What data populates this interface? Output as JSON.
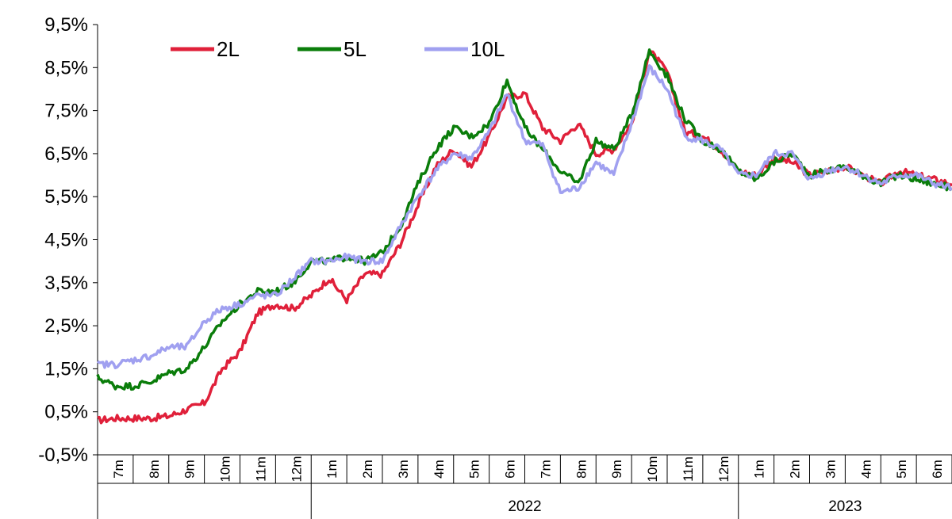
{
  "chart_data": {
    "type": "line",
    "title": "",
    "xlabel": "",
    "ylabel": "",
    "ylim": [
      -0.5,
      9.5
    ],
    "yticks": [
      "9,5%",
      "8,5%",
      "7,5%",
      "6,5%",
      "5,5%",
      "4,5%",
      "3,5%",
      "2,5%",
      "1,5%",
      "0,5%",
      "-0,5%"
    ],
    "months": [
      "7m",
      "8m",
      "9m",
      "10m",
      "11m",
      "12m",
      "1m",
      "2m",
      "3m",
      "4m",
      "5m",
      "6m",
      "7m",
      "8m",
      "9m",
      "10m",
      "11m",
      "12m",
      "1m",
      "2m",
      "3m",
      "4m",
      "5m",
      "6m"
    ],
    "years": [
      {
        "label": "2022",
        "from": 6,
        "to": 17
      },
      {
        "label": "2023",
        "from": 18,
        "to": 23
      }
    ],
    "legend_position": "top-left",
    "x": [
      0,
      0.5,
      1,
      1.5,
      2,
      2.5,
      3,
      3.5,
      4,
      4.5,
      5,
      5.5,
      6,
      6.5,
      7,
      7.5,
      8,
      8.5,
      9,
      9.5,
      10,
      10.5,
      11,
      11.5,
      12,
      12.5,
      13,
      13.5,
      14,
      14.5,
      15,
      15.5,
      16,
      16.5,
      17,
      17.5,
      18,
      18.5,
      19,
      19.5,
      20,
      20.5,
      21,
      21.5,
      22,
      22.5,
      23,
      23.5,
      24
    ],
    "series": [
      {
        "name": "2L",
        "color": "#e0203a",
        "values": [
          0.3,
          0.35,
          0.35,
          0.35,
          0.4,
          0.55,
          0.7,
          1.5,
          1.9,
          2.8,
          3.0,
          2.9,
          3.2,
          3.6,
          3.1,
          3.7,
          3.7,
          4.4,
          5.3,
          6.2,
          6.6,
          6.2,
          6.9,
          7.8,
          7.9,
          7.1,
          6.8,
          7.2,
          6.5,
          6.6,
          7.2,
          8.9,
          8.4,
          7.0,
          6.9,
          6.6,
          6.1,
          6.0,
          6.4,
          6.3,
          6.0,
          6.1,
          6.2,
          6.0,
          5.8,
          6.1,
          6.0,
          5.9,
          5.8
        ]
      },
      {
        "name": "5L",
        "color": "#0a7d0a",
        "values": [
          1.3,
          1.1,
          1.1,
          1.2,
          1.4,
          1.5,
          2.0,
          2.6,
          3.0,
          3.3,
          3.3,
          3.5,
          4.0,
          4.0,
          4.1,
          4.0,
          4.2,
          4.8,
          5.8,
          6.6,
          7.1,
          6.9,
          7.2,
          8.2,
          7.1,
          6.6,
          6.1,
          5.8,
          6.8,
          6.6,
          7.4,
          8.9,
          8.3,
          7.3,
          6.8,
          6.6,
          6.1,
          5.9,
          6.3,
          6.5,
          6.0,
          6.1,
          6.2,
          6.0,
          5.8,
          6.0,
          5.9,
          5.8,
          5.7
        ]
      },
      {
        "name": "10L",
        "color": "#a0a0f0",
        "values": [
          1.6,
          1.6,
          1.7,
          1.8,
          2.0,
          2.0,
          2.6,
          2.9,
          3.0,
          3.2,
          3.2,
          3.6,
          4.0,
          4.0,
          4.1,
          4.0,
          4.0,
          4.8,
          5.5,
          6.1,
          6.5,
          6.4,
          7.0,
          7.9,
          6.8,
          6.7,
          5.6,
          5.7,
          6.3,
          6.0,
          7.2,
          8.5,
          8.0,
          6.9,
          6.8,
          6.6,
          6.0,
          6.0,
          6.5,
          6.5,
          5.9,
          6.1,
          6.2,
          6.0,
          5.8,
          6.0,
          6.0,
          5.8,
          5.7
        ]
      }
    ]
  }
}
